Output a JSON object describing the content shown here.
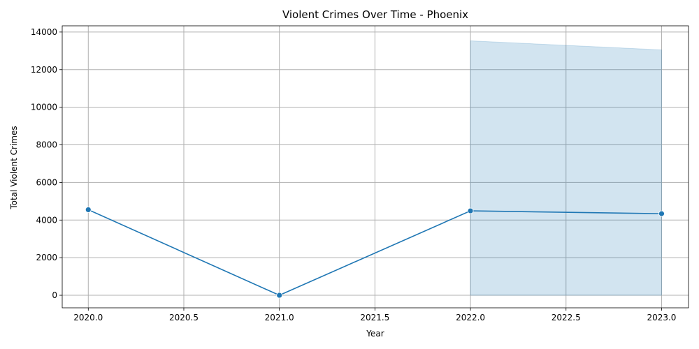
{
  "chart_data": {
    "type": "line",
    "title": "Violent Crimes Over Time - Phoenix",
    "xlabel": "Year",
    "ylabel": "Total Violent Crimes",
    "xlim": [
      1.9836,
      2023.141
    ],
    "ylim": [
      -667,
      14330
    ],
    "x_ticks": [
      2020.0,
      2020.5,
      2021.0,
      2021.5,
      2022.0,
      2022.5,
      2023.0
    ],
    "x_tick_labels": [
      "2020.0",
      "2020.5",
      "2021.0",
      "2021.5",
      "2022.0",
      "2022.5",
      "2023.0"
    ],
    "y_ticks": [
      0,
      2000,
      4000,
      6000,
      8000,
      10000,
      12000,
      14000
    ],
    "y_tick_labels": [
      "0",
      "2000",
      "4000",
      "6000",
      "8000",
      "10000",
      "12000",
      "14000"
    ],
    "grid": true,
    "series": [
      {
        "x": [
          2020,
          2021,
          2022,
          2023
        ],
        "y": [
          4550,
          0,
          4490,
          4340
        ],
        "color": "#1f77b4",
        "marker": "circle",
        "ci_band": {
          "x": [
            2022,
            2023
          ],
          "lower": [
            0,
            0
          ],
          "upper": [
            13530,
            13050
          ],
          "color": "#1f77b4"
        }
      }
    ]
  }
}
